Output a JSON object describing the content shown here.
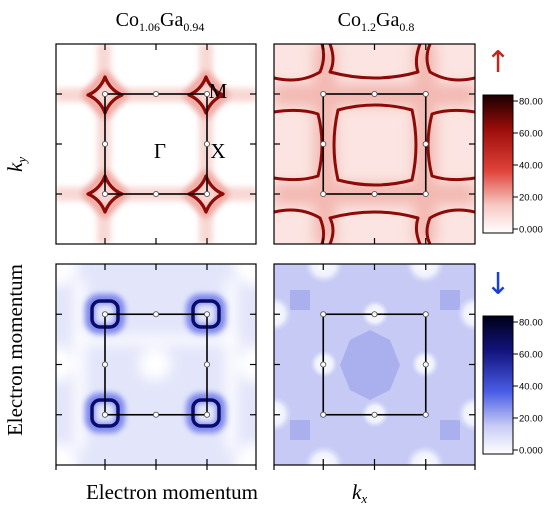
{
  "figure": {
    "axis_x_label": "Electron momentum",
    "axis_x_var": "k",
    "axis_x_sub": "x",
    "axis_y_label": "Electron momentum",
    "axis_y_var": "k",
    "axis_y_sub": "y"
  },
  "columns": [
    {
      "name": "Co1.06Ga0.94",
      "parts": [
        {
          "el": "Co",
          "sub": "1.06"
        },
        {
          "el": "Ga",
          "sub": "0.94"
        }
      ]
    },
    {
      "name": "Co1.2Ga0.8",
      "parts": [
        {
          "el": "Co",
          "sub": "1.2"
        },
        {
          "el": "Ga",
          "sub": "0.8"
        }
      ]
    }
  ],
  "spin_rows": [
    {
      "spin": "up",
      "arrow": "↑",
      "arrow_color": "#c0281c"
    },
    {
      "spin": "down",
      "arrow": "↓",
      "arrow_color": "#1a3fd8"
    }
  ],
  "colors": {
    "up_colormap": [
      "#ffffff",
      "#f7c9c4",
      "#e0433a",
      "#9c0d0a",
      "#1a0000"
    ],
    "down_colormap": [
      "#ffffff",
      "#c9cdf5",
      "#4a5de6",
      "#12137c",
      "#000018"
    ]
  },
  "chart_data": [
    {
      "type": "heatmap",
      "spin": "up",
      "composition": "Co1.06Ga0.94",
      "points": [
        {
          "label": "Γ",
          "k": [
            0,
            0
          ]
        },
        {
          "label": "X",
          "k": [
            0.5,
            0
          ]
        },
        {
          "label": "M",
          "k": [
            0.5,
            0.5
          ]
        }
      ]
    },
    {
      "type": "heatmap",
      "spin": "up",
      "composition": "Co1.2Ga0.8"
    },
    {
      "type": "heatmap",
      "spin": "down",
      "composition": "Co1.06Ga0.94"
    },
    {
      "type": "heatmap",
      "spin": "down",
      "composition": "Co1.2Ga0.8"
    },
    {
      "type": "colorbar",
      "spin": "up",
      "ticks": [
        "80.00",
        "60.00",
        "40.00",
        "20.00",
        "0.000"
      ],
      "range": [
        0,
        80
      ]
    },
    {
      "type": "colorbar",
      "spin": "down",
      "ticks": [
        "80.00",
        "60.00",
        "40.00",
        "20.00",
        "0.000"
      ],
      "range": [
        0,
        80
      ]
    }
  ]
}
